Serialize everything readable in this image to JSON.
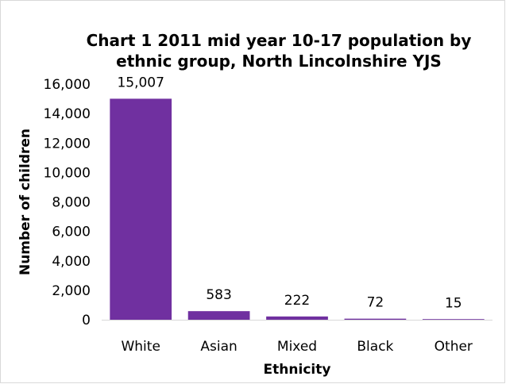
{
  "chart_data": {
    "type": "bar",
    "title_line1": "Chart 1 2011 mid year 10-17 population by",
    "title_line2": "ethnic group, North Lincolnshire YJS",
    "xlabel": "Ethnicity",
    "ylabel": "Number of children",
    "categories": [
      "White",
      "Asian",
      "Mixed",
      "Black",
      "Other"
    ],
    "values": [
      15007,
      583,
      222,
      72,
      15
    ],
    "data_labels": [
      "15,007",
      "583",
      "222",
      "72",
      "15"
    ],
    "ylim": [
      0,
      16000
    ],
    "yticks": [
      0,
      2000,
      4000,
      6000,
      8000,
      10000,
      12000,
      14000,
      16000
    ],
    "ytick_labels": [
      "0",
      "2,000",
      "4,000",
      "6,000",
      "8,000",
      "10,000",
      "12,000",
      "14,000",
      "16,000"
    ],
    "bar_color": "#7030a0",
    "grid": false,
    "legend": "none"
  }
}
